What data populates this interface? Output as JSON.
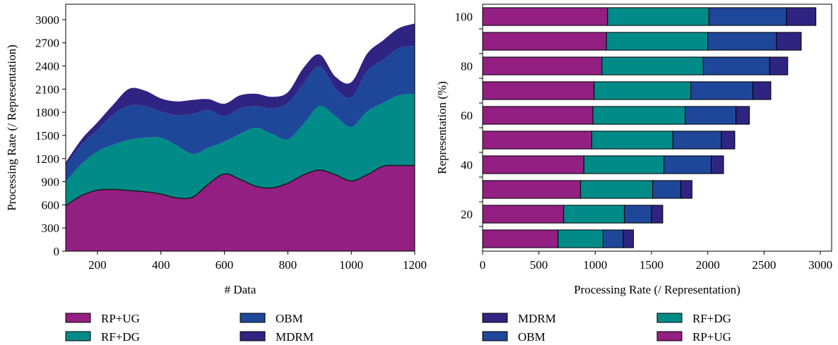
{
  "chart_data": [
    {
      "type": "area",
      "stacked": true,
      "xlabel": "# Data",
      "ylabel": "Processing Rate (/ Representation)",
      "xlim": [
        100,
        1200
      ],
      "ylim": [
        0,
        3200
      ],
      "xticks": [
        200,
        400,
        600,
        800,
        1000,
        1200
      ],
      "yticks": [
        0,
        300,
        600,
        900,
        1200,
        1500,
        1800,
        2100,
        2400,
        2700,
        3000
      ],
      "x": [
        100,
        150,
        200,
        250,
        300,
        350,
        400,
        450,
        500,
        550,
        600,
        650,
        700,
        750,
        800,
        850,
        900,
        950,
        1000,
        1050,
        1100,
        1150,
        1200
      ],
      "series": [
        {
          "name": "RP+UG",
          "color": "#921f81",
          "values": [
            590,
            720,
            790,
            800,
            785,
            770,
            740,
            690,
            700,
            870,
            1000,
            930,
            840,
            820,
            880,
            990,
            1050,
            990,
            910,
            990,
            1100,
            1110,
            1110
          ]
        },
        {
          "name": "RF+DG",
          "color": "#008b88",
          "values": [
            310,
            410,
            500,
            580,
            660,
            700,
            730,
            680,
            560,
            470,
            420,
            590,
            760,
            700,
            570,
            660,
            830,
            760,
            700,
            820,
            820,
            910,
            930
          ]
        },
        {
          "name": "OBM",
          "color": "#1e4799",
          "values": [
            200,
            250,
            280,
            390,
            440,
            410,
            340,
            390,
            520,
            490,
            330,
            330,
            280,
            330,
            470,
            520,
            520,
            360,
            380,
            520,
            560,
            610,
            620
          ]
        },
        {
          "name": "MDRM",
          "color": "#2f2482",
          "values": [
            50,
            70,
            100,
            130,
            220,
            200,
            170,
            180,
            180,
            140,
            160,
            170,
            160,
            150,
            140,
            210,
            150,
            150,
            200,
            230,
            250,
            260,
            290
          ]
        }
      ],
      "legend": {
        "position": "bottom",
        "entries": [
          "RP+UG",
          "OBM",
          "RF+DG",
          "MDRM"
        ]
      }
    },
    {
      "type": "bar",
      "orientation": "horizontal",
      "stacked": true,
      "xlabel": "Processing Rate (/ Representation)",
      "ylabel": "Representation (%)",
      "xlim": [
        0,
        3100
      ],
      "xticks": [
        0,
        500,
        1000,
        1500,
        2000,
        2500,
        3000
      ],
      "yticks": [
        20,
        40,
        60,
        80,
        100
      ],
      "categories": [
        10,
        20,
        30,
        40,
        50,
        60,
        70,
        80,
        90,
        100
      ],
      "series": [
        {
          "name": "RP+UG",
          "color": "#921f81",
          "values": [
            670,
            720,
            870,
            900,
            970,
            980,
            990,
            1060,
            1100,
            1110
          ]
        },
        {
          "name": "RF+DG",
          "color": "#008b88",
          "values": [
            400,
            540,
            640,
            710,
            720,
            820,
            860,
            900,
            900,
            900
          ]
        },
        {
          "name": "OBM",
          "color": "#1e4799",
          "values": [
            180,
            240,
            250,
            420,
            430,
            450,
            550,
            590,
            610,
            690
          ]
        },
        {
          "name": "MDRM",
          "color": "#2f2482",
          "values": [
            90,
            100,
            100,
            110,
            120,
            120,
            160,
            160,
            220,
            260
          ]
        }
      ],
      "legend": {
        "position": "bottom",
        "entries": [
          "MDRM",
          "RF+DG",
          "OBM",
          "RP+UG"
        ]
      }
    }
  ]
}
